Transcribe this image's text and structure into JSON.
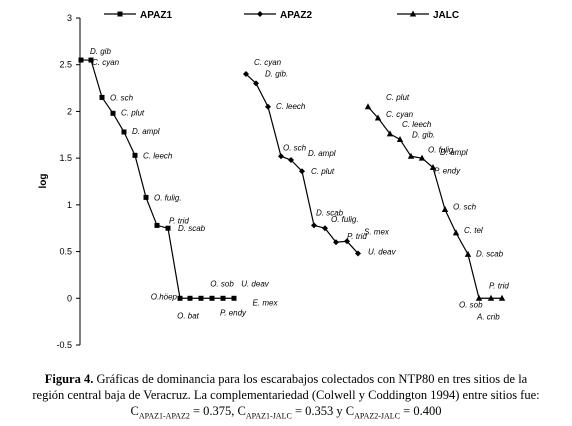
{
  "chart_data": {
    "type": "line",
    "ylabel": "log",
    "ylim": [
      -0.5,
      3
    ],
    "yticks": [
      "3",
      "2.5",
      "2",
      "1.5",
      "1",
      "0.5",
      "0",
      "-0.5"
    ],
    "ytick_values": [
      3,
      2.5,
      2,
      1.5,
      1,
      0.5,
      0,
      -0.5
    ],
    "series": [
      {
        "name": "APAZ1",
        "marker": "square",
        "values": [
          2.55,
          2.55,
          2.15,
          1.98,
          1.78,
          1.53,
          1.08,
          0.78,
          0.75,
          0.0,
          0.0,
          0.0,
          0.0,
          0.0,
          0.0
        ],
        "labels": [
          {
            "text": "D. gib",
            "index": 0
          },
          {
            "text": "C. cyan",
            "index": 1
          },
          {
            "text": "O. sch",
            "index": 2
          },
          {
            "text": "C. plut",
            "index": 3
          },
          {
            "text": "D. ampl",
            "index": 4
          },
          {
            "text": "C. leech",
            "index": 5
          },
          {
            "text": "O. fulig.",
            "index": 6
          },
          {
            "text": "P. trid",
            "index": 7
          },
          {
            "text": "D. scab",
            "index": 8
          },
          {
            "text": "O.höep",
            "index": 9
          },
          {
            "text": "O. bat",
            "index": 10
          },
          {
            "text": "O. sob",
            "index": 11
          },
          {
            "text": "P. endy",
            "index": 12
          },
          {
            "text": "U. deav",
            "index": 13
          },
          {
            "text": "E. mex",
            "index": 14
          }
        ]
      },
      {
        "name": "APAZ2",
        "marker": "diamond",
        "values": [
          2.4,
          2.3,
          2.05,
          1.52,
          1.48,
          1.36,
          0.78,
          0.75,
          0.6,
          0.61,
          0.48
        ],
        "labels": [
          {
            "text": "C. cyan",
            "index": 0
          },
          {
            "text": "D. gib.",
            "index": 1
          },
          {
            "text": "C. leech",
            "index": 2
          },
          {
            "text": "O. sch",
            "index": 3
          },
          {
            "text": "D. ampl",
            "index": 4
          },
          {
            "text": "C. plut",
            "index": 5
          },
          {
            "text": "D. scab",
            "index": 6
          },
          {
            "text": "O. fulig.",
            "index": 7
          },
          {
            "text": "P. trid",
            "index": 8
          },
          {
            "text": "S. mex",
            "index": 9
          },
          {
            "text": "U. deav",
            "index": 10
          }
        ]
      },
      {
        "name": "JALC",
        "marker": "triangle",
        "values": [
          2.05,
          1.93,
          1.76,
          1.7,
          1.52,
          1.5,
          1.4,
          0.95,
          0.7,
          0.47,
          0.0,
          0.0,
          0.0
        ],
        "labels": [
          {
            "text": "C. plut",
            "index": 0
          },
          {
            "text": "C. cyan",
            "index": 1
          },
          {
            "text": "C. leech",
            "index": 2
          },
          {
            "text": "D. gib.",
            "index": 3
          },
          {
            "text": "O. fulig.",
            "index": 4
          },
          {
            "text": "D. ampl",
            "index": 5
          },
          {
            "text": "P. endy",
            "index": 6
          },
          {
            "text": "O. sch",
            "index": 7
          },
          {
            "text": "C. tel",
            "index": 8
          },
          {
            "text": "D. scab",
            "index": 9
          },
          {
            "text": "P. trid",
            "index": 10
          },
          {
            "text": "O. sob",
            "index": 11
          },
          {
            "text": "A. crib",
            "index": 12
          }
        ]
      }
    ],
    "grid": false,
    "legend_position": "top"
  },
  "caption": {
    "label": "Figura 4.",
    "line1": "Gráficas de dominancia para los escarabajos colectados con NTP80 en tres sitios de la",
    "line2": "región central baja de Veracruz. La complementariedad (Colwell y Coddington 1994) entre sitios fue:",
    "c_letter": "C",
    "sub1": "APAZ1-APAZ2",
    "val1": " =  0.375, ",
    "sub2": "APAZ1-JALC",
    "val2": " = 0.353 y ",
    "sub3": "APAZ2-JALC",
    "val3": " = 0.400"
  }
}
